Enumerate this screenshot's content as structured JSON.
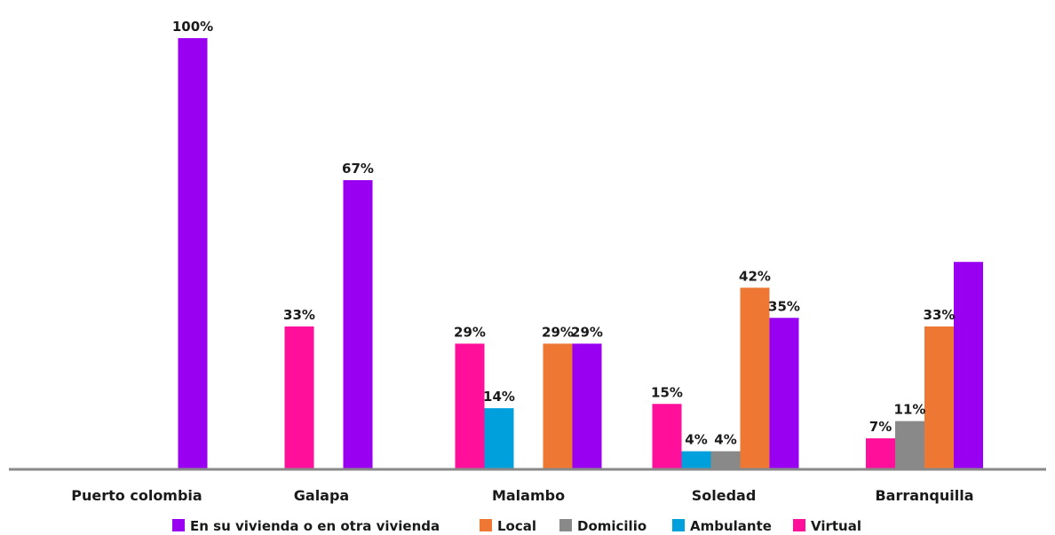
{
  "chart_data": {
    "type": "bar",
    "categories": [
      "Puerto colombia",
      "Galapa",
      "Malambo",
      "Soledad",
      "Barranquilla"
    ],
    "series": [
      {
        "name": "Virtual",
        "color": "#FF0F9A",
        "values": [
          null,
          33,
          29,
          15,
          7
        ],
        "labels": [
          "",
          "33%",
          "29%",
          "15%",
          "7%"
        ]
      },
      {
        "name": "Ambulante",
        "color": "#00A0DC",
        "values": [
          null,
          null,
          14,
          4,
          null
        ],
        "labels": [
          "",
          "",
          "14%",
          "4%",
          ""
        ]
      },
      {
        "name": "Domicilio",
        "color": "#898989",
        "values": [
          null,
          null,
          null,
          4,
          11
        ],
        "labels": [
          "",
          "",
          "",
          "4%",
          "11%"
        ]
      },
      {
        "name": "Local",
        "color": "#EE7733",
        "values": [
          null,
          null,
          29,
          42,
          33
        ],
        "labels": [
          "",
          "",
          "29%",
          "42%",
          "33%"
        ]
      },
      {
        "name": "En su vivienda o en otra vivienda",
        "color": "#9900F2",
        "values": [
          100,
          67,
          29,
          35,
          48
        ],
        "labels": [
          "100%",
          "67%",
          "29%",
          "35%",
          ""
        ]
      }
    ],
    "legend_order": [
      "En su vivienda o en otra vivienda",
      "Local",
      "Domicilio",
      "Ambulante",
      "Virtual"
    ],
    "ylim": [
      0,
      100
    ],
    "grid": false,
    "legend_position": "bottom",
    "axis_color": "#898989"
  }
}
